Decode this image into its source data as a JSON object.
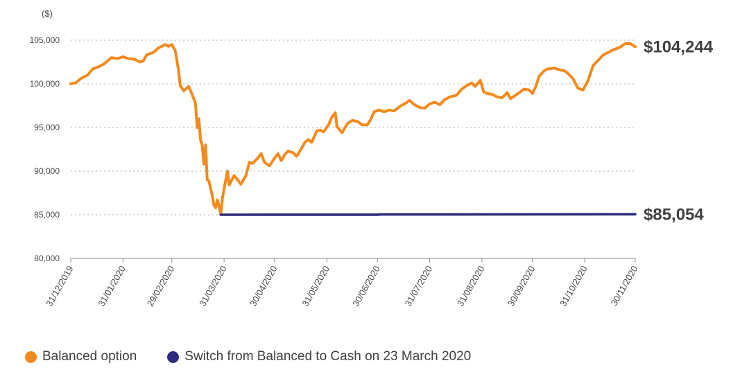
{
  "chart_data": {
    "type": "line",
    "unit_label": "($)",
    "ylim": [
      80000,
      105000
    ],
    "y_ticks": [
      80000,
      85000,
      90000,
      95000,
      100000,
      105000
    ],
    "y_tick_labels": [
      "80,000",
      "85,000",
      "90,000",
      "95,000",
      "100,000",
      "105,000"
    ],
    "xlim": [
      "2019-12-31",
      "2020-11-30"
    ],
    "x_ticks": [
      "2019-12-31",
      "2020-01-31",
      "2020-02-29",
      "2020-03-31",
      "2020-04-30",
      "2020-05-31",
      "2020-06-30",
      "2020-07-31",
      "2020-08-31",
      "2020-09-30",
      "2020-10-31",
      "2020-11-30"
    ],
    "x_tick_labels": [
      "31/12/2019",
      "31/01/2020",
      "29/02/2020",
      "31/03/2020",
      "30/04/2020",
      "31/05/2020",
      "30/06/2020",
      "31/07/2020",
      "31/08/2020",
      "30/09/2020",
      "31/10/2020",
      "30/11/2020"
    ],
    "grid": "horizontal dotted",
    "legend_position": "bottom",
    "series": [
      {
        "name": "Balanced option",
        "color": "#F28A1E",
        "end_label": "$104,244",
        "points": [
          [
            "2019-12-31",
            100000
          ],
          [
            "2020-01-03",
            100100
          ],
          [
            "2020-01-06",
            100600
          ],
          [
            "2020-01-10",
            101000
          ],
          [
            "2020-01-13",
            101700
          ],
          [
            "2020-01-17",
            102000
          ],
          [
            "2020-01-20",
            102300
          ],
          [
            "2020-01-24",
            103000
          ],
          [
            "2020-01-28",
            102900
          ],
          [
            "2020-01-31",
            103100
          ],
          [
            "2020-02-03",
            102900
          ],
          [
            "2020-02-07",
            102800
          ],
          [
            "2020-02-10",
            102500
          ],
          [
            "2020-02-12",
            102600
          ],
          [
            "2020-02-14",
            103300
          ],
          [
            "2020-02-18",
            103600
          ],
          [
            "2020-02-21",
            104100
          ],
          [
            "2020-02-25",
            104500
          ],
          [
            "2020-02-27",
            104300
          ],
          [
            "2020-02-29",
            104500
          ],
          [
            "2020-03-02",
            103800
          ],
          [
            "2020-03-04",
            101500
          ],
          [
            "2020-03-05",
            99800
          ],
          [
            "2020-03-07",
            99200
          ],
          [
            "2020-03-10",
            99700
          ],
          [
            "2020-03-12",
            98800
          ],
          [
            "2020-03-14",
            97800
          ],
          [
            "2020-03-15",
            95000
          ],
          [
            "2020-03-16",
            96000
          ],
          [
            "2020-03-17",
            93600
          ],
          [
            "2020-03-18",
            93000
          ],
          [
            "2020-03-19",
            90800
          ],
          [
            "2020-03-20",
            93000
          ],
          [
            "2020-03-21",
            89000
          ],
          [
            "2020-03-22",
            88900
          ],
          [
            "2020-03-24",
            87200
          ],
          [
            "2020-03-25",
            86100
          ],
          [
            "2020-03-26",
            85800
          ],
          [
            "2020-03-27",
            86700
          ],
          [
            "2020-03-28",
            86000
          ],
          [
            "2020-03-29",
            85054
          ],
          [
            "2020-03-30",
            86900
          ],
          [
            "2020-04-01",
            89000
          ],
          [
            "2020-04-02",
            90000
          ],
          [
            "2020-04-03",
            88400
          ],
          [
            "2020-04-06",
            89500
          ],
          [
            "2020-04-08",
            89000
          ],
          [
            "2020-04-10",
            88500
          ],
          [
            "2020-04-13",
            89500
          ],
          [
            "2020-04-15",
            91000
          ],
          [
            "2020-04-17",
            90900
          ],
          [
            "2020-04-20",
            91500
          ],
          [
            "2020-04-22",
            92000
          ],
          [
            "2020-04-24",
            91000
          ],
          [
            "2020-04-27",
            90600
          ],
          [
            "2020-04-30",
            91500
          ],
          [
            "2020-05-02",
            92000
          ],
          [
            "2020-05-04",
            91200
          ],
          [
            "2020-05-06",
            91900
          ],
          [
            "2020-05-08",
            92300
          ],
          [
            "2020-05-11",
            92100
          ],
          [
            "2020-05-13",
            91700
          ],
          [
            "2020-05-15",
            92300
          ],
          [
            "2020-05-18",
            93300
          ],
          [
            "2020-05-20",
            93600
          ],
          [
            "2020-05-22",
            93300
          ],
          [
            "2020-05-25",
            94600
          ],
          [
            "2020-05-27",
            94700
          ],
          [
            "2020-05-29",
            94500
          ],
          [
            "2020-06-01",
            95300
          ],
          [
            "2020-06-03",
            96200
          ],
          [
            "2020-06-05",
            96700
          ],
          [
            "2020-06-06",
            95100
          ],
          [
            "2020-06-09",
            94400
          ],
          [
            "2020-06-12",
            95400
          ],
          [
            "2020-06-15",
            95800
          ],
          [
            "2020-06-18",
            95700
          ],
          [
            "2020-06-21",
            95300
          ],
          [
            "2020-06-24",
            95300
          ],
          [
            "2020-06-26",
            95900
          ],
          [
            "2020-06-28",
            96800
          ],
          [
            "2020-07-01",
            97000
          ],
          [
            "2020-07-04",
            96800
          ],
          [
            "2020-07-07",
            97000
          ],
          [
            "2020-07-10",
            96900
          ],
          [
            "2020-07-14",
            97500
          ],
          [
            "2020-07-17",
            97800
          ],
          [
            "2020-07-19",
            98100
          ],
          [
            "2020-07-22",
            97600
          ],
          [
            "2020-07-25",
            97300
          ],
          [
            "2020-07-28",
            97200
          ],
          [
            "2020-07-31",
            97700
          ],
          [
            "2020-08-03",
            97900
          ],
          [
            "2020-08-06",
            97600
          ],
          [
            "2020-08-09",
            98200
          ],
          [
            "2020-08-12",
            98500
          ],
          [
            "2020-08-16",
            98700
          ],
          [
            "2020-08-19",
            99400
          ],
          [
            "2020-08-22",
            99800
          ],
          [
            "2020-08-25",
            100100
          ],
          [
            "2020-08-27",
            99700
          ],
          [
            "2020-08-30",
            100400
          ],
          [
            "2020-09-01",
            99100
          ],
          [
            "2020-09-03",
            98900
          ],
          [
            "2020-09-06",
            98800
          ],
          [
            "2020-09-09",
            98500
          ],
          [
            "2020-09-12",
            98400
          ],
          [
            "2020-09-15",
            99000
          ],
          [
            "2020-09-17",
            98300
          ],
          [
            "2020-09-20",
            98700
          ],
          [
            "2020-09-23",
            99100
          ],
          [
            "2020-09-25",
            99400
          ],
          [
            "2020-09-28",
            99300
          ],
          [
            "2020-09-30",
            98900
          ],
          [
            "2020-10-02",
            99700
          ],
          [
            "2020-10-04",
            100900
          ],
          [
            "2020-10-07",
            101500
          ],
          [
            "2020-10-09",
            101700
          ],
          [
            "2020-10-13",
            101800
          ],
          [
            "2020-10-16",
            101600
          ],
          [
            "2020-10-19",
            101500
          ],
          [
            "2020-10-21",
            101200
          ],
          [
            "2020-10-24",
            100600
          ],
          [
            "2020-10-27",
            99500
          ],
          [
            "2020-10-30",
            99300
          ],
          [
            "2020-11-02",
            100400
          ],
          [
            "2020-11-05",
            102100
          ],
          [
            "2020-11-08",
            102700
          ],
          [
            "2020-11-11",
            103300
          ],
          [
            "2020-11-14",
            103600
          ],
          [
            "2020-11-17",
            103900
          ],
          [
            "2020-11-21",
            104200
          ],
          [
            "2020-11-24",
            104600
          ],
          [
            "2020-11-27",
            104600
          ],
          [
            "2020-11-30",
            104244
          ]
        ]
      },
      {
        "name": "Switch from Balanced to Cash on 23 March 2020",
        "color": "#2B2D7C",
        "end_label": "$85,054",
        "points": [
          [
            "2020-03-29",
            85000
          ],
          [
            "2020-06-30",
            85010
          ],
          [
            "2020-07-02",
            85030
          ],
          [
            "2020-11-30",
            85054
          ]
        ]
      }
    ]
  }
}
